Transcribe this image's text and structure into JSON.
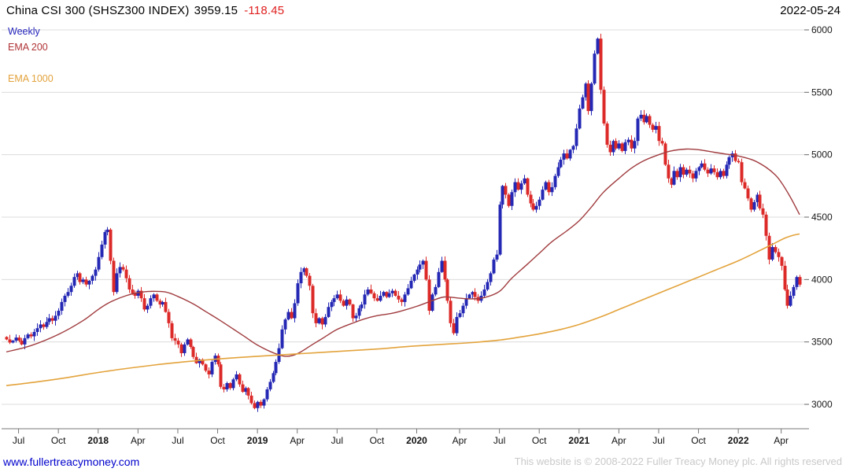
{
  "header": {
    "title": "China CSI 300 (SHSZ300 INDEX)",
    "last_price": "3959.15",
    "change": "-118.45",
    "date": "2022-05-24"
  },
  "legend": {
    "items": [
      {
        "label": "Weekly",
        "color": "#2323bb"
      },
      {
        "label": "EMA 200",
        "color": "#b03336"
      },
      {
        "label": "EMA 1000",
        "color": "#e3a33c"
      }
    ]
  },
  "footer": {
    "link": "www.fullertreacymoney.com",
    "copyright": "This website is © 2008-2022 Fuller Treacy Money plc. All rights reserved"
  },
  "chart_data": {
    "type": "candlestick",
    "title": "China CSI 300 (SHSZ300 INDEX)",
    "interval": "Weekly",
    "last_close": 3959.15,
    "change": -118.45,
    "as_of": "2022-05-24",
    "up_color": "#2428b4",
    "down_color": "#dc2a28",
    "grid": true,
    "ylim": [
      2900,
      6050
    ],
    "y_ticks": [
      3000,
      3500,
      4000,
      4500,
      5000,
      5500,
      6000
    ],
    "x_ticks": [
      {
        "label": "Jul",
        "week": 4
      },
      {
        "label": "Oct",
        "week": 17
      },
      {
        "label": "2018",
        "week": 30
      },
      {
        "label": "Apr",
        "week": 43
      },
      {
        "label": "Jul",
        "week": 56
      },
      {
        "label": "Oct",
        "week": 69
      },
      {
        "label": "2019",
        "week": 82
      },
      {
        "label": "Apr",
        "week": 95
      },
      {
        "label": "Jul",
        "week": 108
      },
      {
        "label": "Oct",
        "week": 121
      },
      {
        "label": "2020",
        "week": 134
      },
      {
        "label": "Apr",
        "week": 148
      },
      {
        "label": "Jul",
        "week": 161
      },
      {
        "label": "Oct",
        "week": 174
      },
      {
        "label": "2021",
        "week": 187
      },
      {
        "label": "Apr",
        "week": 200
      },
      {
        "label": "Jul",
        "week": 213
      },
      {
        "label": "Oct",
        "week": 226
      },
      {
        "label": "2022",
        "week": 239
      },
      {
        "label": "Apr",
        "week": 253
      }
    ],
    "weekly_closes": [
      3520,
      3495,
      3510,
      3535,
      3510,
      3480,
      3530,
      3560,
      3545,
      3580,
      3610,
      3640,
      3620,
      3660,
      3690,
      3670,
      3710,
      3750,
      3820,
      3870,
      3900,
      3950,
      4020,
      4050,
      3980,
      4000,
      3960,
      3990,
      4030,
      4080,
      4180,
      4280,
      4380,
      4400,
      4150,
      3900,
      4050,
      4100,
      4080,
      4010,
      3920,
      3890,
      3870,
      3910,
      3850,
      3760,
      3790,
      3850,
      3880,
      3830,
      3800,
      3820,
      3740,
      3650,
      3530,
      3510,
      3480,
      3410,
      3480,
      3520,
      3460,
      3380,
      3330,
      3360,
      3320,
      3270,
      3240,
      3340,
      3390,
      3320,
      3140,
      3120,
      3170,
      3130,
      3200,
      3240,
      3160,
      3100,
      3130,
      3070,
      3010,
      2970,
      3020,
      2990,
      3040,
      3120,
      3180,
      3250,
      3340,
      3450,
      3600,
      3680,
      3740,
      3690,
      3810,
      3970,
      4060,
      4090,
      4030,
      3950,
      3730,
      3650,
      3690,
      3640,
      3700,
      3780,
      3820,
      3850,
      3880,
      3830,
      3790,
      3840,
      3800,
      3690,
      3710,
      3770,
      3800,
      3880,
      3920,
      3890,
      3850,
      3830,
      3870,
      3900,
      3860,
      3890,
      3910,
      3870,
      3840,
      3820,
      3880,
      3930,
      3990,
      4040,
      4080,
      4120,
      4150,
      4000,
      3750,
      3880,
      3940,
      4060,
      4150,
      4000,
      3830,
      3650,
      3570,
      3700,
      3730,
      3790,
      3850,
      3880,
      3900,
      3860,
      3830,
      3870,
      3920,
      3980,
      4050,
      4160,
      4200,
      4600,
      4750,
      4680,
      4590,
      4700,
      4780,
      4720,
      4770,
      4810,
      4680,
      4610,
      4560,
      4590,
      4640,
      4720,
      4780,
      4700,
      4740,
      4830,
      4900,
      4960,
      5010,
      4970,
      5040,
      5070,
      5210,
      5370,
      5460,
      5570,
      5350,
      5570,
      5810,
      5930,
      5520,
      5250,
      5080,
      5020,
      5110,
      5050,
      5090,
      5030,
      5100,
      5120,
      5050,
      5110,
      5290,
      5320,
      5260,
      5310,
      5240,
      5200,
      5230,
      5110,
      5090,
      4920,
      4810,
      4760,
      4870,
      4820,
      4900,
      4840,
      4880,
      4850,
      4810,
      4870,
      4900,
      4930,
      4880,
      4850,
      4890,
      4860,
      4820,
      4870,
      4830,
      4920,
      4980,
      5010,
      4950,
      4940,
      4780,
      4730,
      4650,
      4560,
      4620,
      4680,
      4570,
      4520,
      4350,
      4160,
      4260,
      4220,
      4180,
      4110,
      3920,
      3790,
      3870,
      3940,
      4020,
      3959.15
    ],
    "overlays": [
      {
        "name": "EMA 200",
        "color": "#a03b3e",
        "anchors": [
          [
            0,
            3420
          ],
          [
            8,
            3470
          ],
          [
            17,
            3560
          ],
          [
            25,
            3670
          ],
          [
            30,
            3760
          ],
          [
            34,
            3820
          ],
          [
            39,
            3870
          ],
          [
            43,
            3895
          ],
          [
            47,
            3905
          ],
          [
            52,
            3900
          ],
          [
            56,
            3865
          ],
          [
            61,
            3805
          ],
          [
            65,
            3745
          ],
          [
            69,
            3685
          ],
          [
            74,
            3605
          ],
          [
            78,
            3540
          ],
          [
            82,
            3475
          ],
          [
            87,
            3415
          ],
          [
            91,
            3385
          ],
          [
            95,
            3405
          ],
          [
            100,
            3480
          ],
          [
            104,
            3540
          ],
          [
            108,
            3600
          ],
          [
            113,
            3650
          ],
          [
            117,
            3685
          ],
          [
            121,
            3710
          ],
          [
            126,
            3730
          ],
          [
            130,
            3755
          ],
          [
            134,
            3785
          ],
          [
            139,
            3830
          ],
          [
            143,
            3860
          ],
          [
            148,
            3850
          ],
          [
            152,
            3845
          ],
          [
            156,
            3855
          ],
          [
            161,
            3905
          ],
          [
            165,
            4010
          ],
          [
            170,
            4120
          ],
          [
            174,
            4210
          ],
          [
            178,
            4300
          ],
          [
            183,
            4390
          ],
          [
            187,
            4470
          ],
          [
            191,
            4580
          ],
          [
            195,
            4700
          ],
          [
            200,
            4810
          ],
          [
            204,
            4890
          ],
          [
            208,
            4950
          ],
          [
            213,
            5000
          ],
          [
            217,
            5030
          ],
          [
            222,
            5045
          ],
          [
            226,
            5040
          ],
          [
            231,
            5020
          ],
          [
            235,
            5005
          ],
          [
            239,
            4990
          ],
          [
            244,
            4955
          ],
          [
            248,
            4900
          ],
          [
            251,
            4840
          ],
          [
            253,
            4780
          ],
          [
            256,
            4660
          ],
          [
            259,
            4520
          ]
        ]
      },
      {
        "name": "EMA 1000",
        "color": "#e3a33c",
        "anchors": [
          [
            0,
            3150
          ],
          [
            10,
            3180
          ],
          [
            20,
            3215
          ],
          [
            30,
            3255
          ],
          [
            40,
            3290
          ],
          [
            50,
            3320
          ],
          [
            60,
            3345
          ],
          [
            70,
            3365
          ],
          [
            82,
            3385
          ],
          [
            92,
            3400
          ],
          [
            102,
            3415
          ],
          [
            112,
            3430
          ],
          [
            122,
            3445
          ],
          [
            132,
            3465
          ],
          [
            142,
            3480
          ],
          [
            152,
            3495
          ],
          [
            161,
            3515
          ],
          [
            168,
            3540
          ],
          [
            174,
            3565
          ],
          [
            181,
            3600
          ],
          [
            187,
            3640
          ],
          [
            194,
            3700
          ],
          [
            200,
            3760
          ],
          [
            207,
            3830
          ],
          [
            213,
            3890
          ],
          [
            220,
            3960
          ],
          [
            226,
            4020
          ],
          [
            232,
            4080
          ],
          [
            239,
            4150
          ],
          [
            245,
            4220
          ],
          [
            250,
            4280
          ],
          [
            254,
            4330
          ],
          [
            257,
            4355
          ],
          [
            259,
            4365
          ]
        ]
      }
    ]
  }
}
